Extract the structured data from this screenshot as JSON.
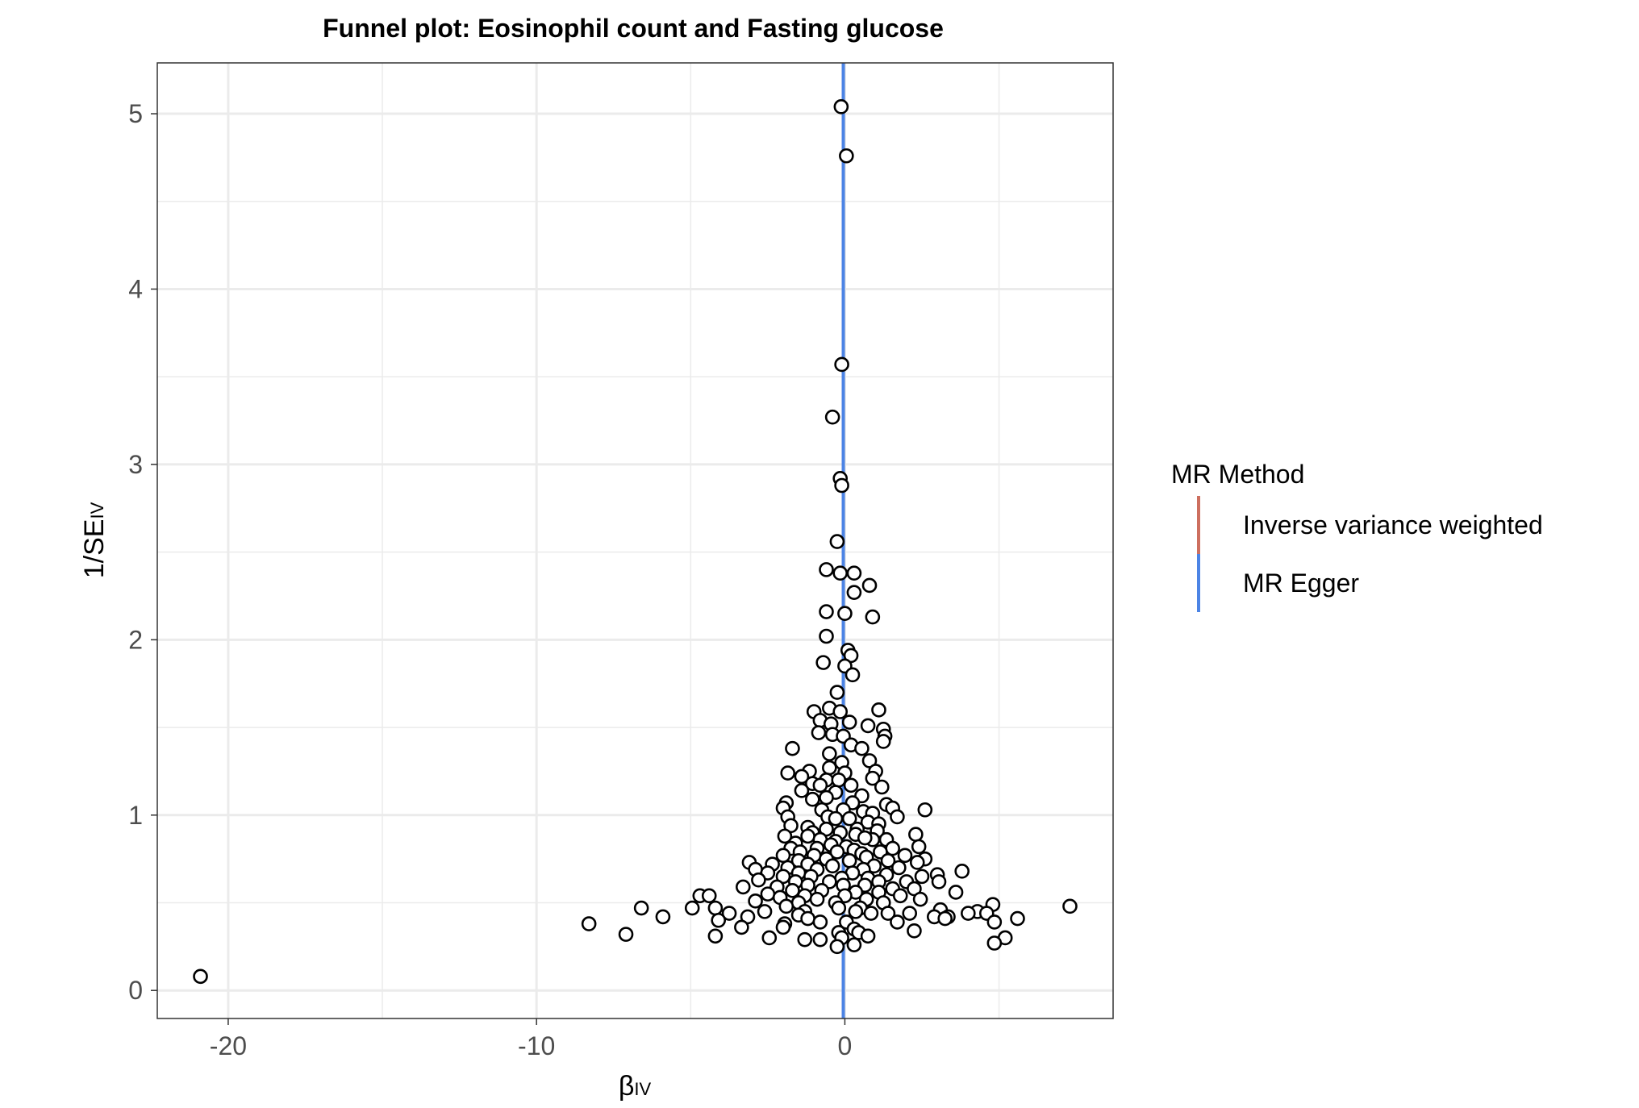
{
  "chart_data": {
    "type": "scatter",
    "title": "Funnel plot: Eosinophil count and Fasting glucose",
    "xlabel": {
      "main": "β",
      "sub": "IV"
    },
    "ylabel": {
      "main": "1/SE",
      "sub": "IV"
    },
    "xlim": [
      -22.3,
      8.7
    ],
    "ylim": [
      -0.16,
      5.29
    ],
    "x_ticks": [
      -20,
      -10,
      0
    ],
    "x_tick_labels": [
      "-20",
      "-10",
      "0"
    ],
    "y_ticks": [
      0,
      1,
      2,
      3,
      4,
      5
    ],
    "y_tick_labels": [
      "0",
      "1",
      "2",
      "3",
      "4",
      "5"
    ],
    "grid": true,
    "legend": {
      "title": "MR Method",
      "position": "right",
      "entries": [
        {
          "label": "Inverse variance weighted",
          "color": "#CD6F5F"
        },
        {
          "label": "MR Egger",
          "color": "#4C84E5"
        }
      ]
    },
    "lines": [
      {
        "name": "Inverse variance weighted",
        "type": "vline",
        "x": -0.05,
        "color": "#CD6F5F"
      },
      {
        "name": "MR Egger",
        "type": "vline",
        "x": -0.05,
        "color": "#4C84E5"
      }
    ],
    "points": [
      [
        -0.12,
        5.04
      ],
      [
        0.05,
        4.76
      ],
      [
        -0.1,
        3.57
      ],
      [
        -0.4,
        3.27
      ],
      [
        -0.15,
        2.92
      ],
      [
        -0.1,
        2.88
      ],
      [
        -0.25,
        2.56
      ],
      [
        -0.6,
        2.4
      ],
      [
        -0.15,
        2.38
      ],
      [
        0.3,
        2.38
      ],
      [
        0.8,
        2.31
      ],
      [
        0.3,
        2.27
      ],
      [
        0.9,
        2.13
      ],
      [
        -0.6,
        2.16
      ],
      [
        0.0,
        2.15
      ],
      [
        -0.6,
        2.02
      ],
      [
        0.1,
        1.94
      ],
      [
        0.2,
        1.91
      ],
      [
        -0.7,
        1.87
      ],
      [
        0.0,
        1.85
      ],
      [
        0.25,
        1.8
      ],
      [
        -0.25,
        1.7
      ],
      [
        1.1,
        1.6
      ],
      [
        -1.0,
        1.59
      ],
      [
        -0.5,
        1.61
      ],
      [
        -0.15,
        1.59
      ],
      [
        -0.8,
        1.54
      ],
      [
        -0.45,
        1.52
      ],
      [
        0.15,
        1.53
      ],
      [
        0.75,
        1.51
      ],
      [
        1.25,
        1.49
      ],
      [
        -0.85,
        1.47
      ],
      [
        -0.4,
        1.46
      ],
      [
        -0.05,
        1.45
      ],
      [
        1.3,
        1.45
      ],
      [
        1.25,
        1.42
      ],
      [
        0.2,
        1.4
      ],
      [
        0.55,
        1.38
      ],
      [
        -1.7,
        1.38
      ],
      [
        -0.5,
        1.35
      ],
      [
        -0.1,
        1.3
      ],
      [
        0.8,
        1.31
      ],
      [
        -1.15,
        1.25
      ],
      [
        -0.5,
        1.27
      ],
      [
        0.0,
        1.24
      ],
      [
        1.0,
        1.25
      ],
      [
        -1.85,
        1.24
      ],
      [
        -1.4,
        1.22
      ],
      [
        -0.6,
        1.2
      ],
      [
        -0.2,
        1.2
      ],
      [
        0.9,
        1.21
      ],
      [
        -1.05,
        1.18
      ],
      [
        -0.8,
        1.17
      ],
      [
        0.2,
        1.17
      ],
      [
        1.2,
        1.16
      ],
      [
        -1.4,
        1.14
      ],
      [
        -0.3,
        1.13
      ],
      [
        0.55,
        1.11
      ],
      [
        -1.05,
        1.09
      ],
      [
        -0.6,
        1.1
      ],
      [
        0.25,
        1.07
      ],
      [
        -1.9,
        1.07
      ],
      [
        -2.0,
        1.04
      ],
      [
        1.35,
        1.06
      ],
      [
        1.55,
        1.04
      ],
      [
        2.6,
        1.03
      ],
      [
        -0.75,
        1.03
      ],
      [
        -0.05,
        1.03
      ],
      [
        0.6,
        1.02
      ],
      [
        0.9,
        1.01
      ],
      [
        -1.85,
        0.99
      ],
      [
        -0.55,
        0.99
      ],
      [
        -0.3,
        0.98
      ],
      [
        0.15,
        0.98
      ],
      [
        1.7,
        0.99
      ],
      [
        0.75,
        0.96
      ],
      [
        1.1,
        0.95
      ],
      [
        -1.75,
        0.94
      ],
      [
        -1.2,
        0.93
      ],
      [
        -0.6,
        0.92
      ],
      [
        0.4,
        0.92
      ],
      [
        -1.05,
        0.9
      ],
      [
        -0.15,
        0.9
      ],
      [
        1.05,
        0.91
      ],
      [
        -1.95,
        0.88
      ],
      [
        -1.2,
        0.88
      ],
      [
        0.35,
        0.89
      ],
      [
        2.3,
        0.89
      ],
      [
        0.9,
        0.86
      ],
      [
        -0.8,
        0.86
      ],
      [
        -0.3,
        0.85
      ],
      [
        0.65,
        0.87
      ],
      [
        1.35,
        0.86
      ],
      [
        -1.6,
        0.84
      ],
      [
        -0.45,
        0.83
      ],
      [
        0.05,
        0.82
      ],
      [
        2.4,
        0.82
      ],
      [
        -1.75,
        0.81
      ],
      [
        -0.9,
        0.81
      ],
      [
        0.3,
        0.8
      ],
      [
        1.55,
        0.81
      ],
      [
        1.15,
        0.79
      ],
      [
        -1.45,
        0.79
      ],
      [
        -0.25,
        0.79
      ],
      [
        0.55,
        0.78
      ],
      [
        1.95,
        0.77
      ],
      [
        -2.0,
        0.77
      ],
      [
        -1.0,
        0.77
      ],
      [
        0.7,
        0.76
      ],
      [
        2.6,
        0.75
      ],
      [
        -0.6,
        0.75
      ],
      [
        -1.5,
        0.74
      ],
      [
        0.15,
        0.74
      ],
      [
        1.4,
        0.74
      ],
      [
        2.35,
        0.73
      ],
      [
        -3.1,
        0.73
      ],
      [
        -2.35,
        0.72
      ],
      [
        -1.2,
        0.72
      ],
      [
        -0.4,
        0.71
      ],
      [
        0.95,
        0.71
      ],
      [
        1.75,
        0.7
      ],
      [
        -2.9,
        0.69
      ],
      [
        -1.85,
        0.7
      ],
      [
        -0.9,
        0.69
      ],
      [
        0.6,
        0.69
      ],
      [
        3.8,
        0.68
      ],
      [
        -2.5,
        0.67
      ],
      [
        -1.5,
        0.67
      ],
      [
        0.25,
        0.67
      ],
      [
        1.35,
        0.66
      ],
      [
        3.0,
        0.66
      ],
      [
        2.5,
        0.65
      ],
      [
        -2.0,
        0.65
      ],
      [
        -1.1,
        0.65
      ],
      [
        -0.1,
        0.64
      ],
      [
        0.75,
        0.64
      ],
      [
        -2.8,
        0.63
      ],
      [
        -1.6,
        0.62
      ],
      [
        -0.5,
        0.62
      ],
      [
        1.1,
        0.62
      ],
      [
        2.0,
        0.62
      ],
      [
        3.05,
        0.62
      ],
      [
        -1.2,
        0.6
      ],
      [
        -0.05,
        0.6
      ],
      [
        0.65,
        0.6
      ],
      [
        -3.3,
        0.59
      ],
      [
        -2.2,
        0.59
      ],
      [
        1.55,
        0.58
      ],
      [
        2.25,
        0.58
      ],
      [
        -1.7,
        0.57
      ],
      [
        -0.75,
        0.57
      ],
      [
        0.35,
        0.56
      ],
      [
        1.1,
        0.56
      ],
      [
        3.6,
        0.56
      ],
      [
        -2.5,
        0.55
      ],
      [
        -1.3,
        0.54
      ],
      [
        0.0,
        0.54
      ],
      [
        1.8,
        0.54
      ],
      [
        -4.7,
        0.54
      ],
      [
        -4.4,
        0.54
      ],
      [
        -2.1,
        0.53
      ],
      [
        -0.9,
        0.52
      ],
      [
        0.7,
        0.52
      ],
      [
        2.45,
        0.52
      ],
      [
        -2.9,
        0.51
      ],
      [
        -1.5,
        0.5
      ],
      [
        -0.3,
        0.5
      ],
      [
        1.25,
        0.5
      ],
      [
        -1.9,
        0.48
      ],
      [
        -4.2,
        0.47
      ],
      [
        -6.6,
        0.47
      ],
      [
        -4.95,
        0.47
      ],
      [
        -0.2,
        0.47
      ],
      [
        0.5,
        0.47
      ],
      [
        3.1,
        0.46
      ],
      [
        7.3,
        0.48
      ],
      [
        4.8,
        0.49
      ],
      [
        4.3,
        0.45
      ],
      [
        -1.3,
        0.45
      ],
      [
        -2.6,
        0.45
      ],
      [
        -3.75,
        0.44
      ],
      [
        0.35,
        0.45
      ],
      [
        1.4,
        0.44
      ],
      [
        2.1,
        0.44
      ],
      [
        4.0,
        0.44
      ],
      [
        4.6,
        0.44
      ],
      [
        0.85,
        0.44
      ],
      [
        -1.5,
        0.43
      ],
      [
        -3.15,
        0.42
      ],
      [
        -5.9,
        0.42
      ],
      [
        2.9,
        0.42
      ],
      [
        3.35,
        0.42
      ],
      [
        3.25,
        0.41
      ],
      [
        5.6,
        0.41
      ],
      [
        -1.2,
        0.41
      ],
      [
        -4.1,
        0.4
      ],
      [
        1.7,
        0.39
      ],
      [
        4.85,
        0.39
      ],
      [
        -0.8,
        0.39
      ],
      [
        0.05,
        0.39
      ],
      [
        -8.3,
        0.38
      ],
      [
        -1.95,
        0.38
      ],
      [
        -3.35,
        0.36
      ],
      [
        -2.0,
        0.36
      ],
      [
        0.3,
        0.35
      ],
      [
        2.25,
        0.34
      ],
      [
        -0.2,
        0.33
      ],
      [
        0.45,
        0.33
      ],
      [
        -7.1,
        0.32
      ],
      [
        -4.2,
        0.31
      ],
      [
        0.75,
        0.31
      ],
      [
        -0.1,
        0.3
      ],
      [
        -2.45,
        0.3
      ],
      [
        5.2,
        0.3
      ],
      [
        -1.3,
        0.29
      ],
      [
        -0.8,
        0.29
      ],
      [
        4.85,
        0.27
      ],
      [
        0.3,
        0.26
      ],
      [
        -0.25,
        0.25
      ],
      [
        -20.9,
        0.08
      ]
    ]
  }
}
